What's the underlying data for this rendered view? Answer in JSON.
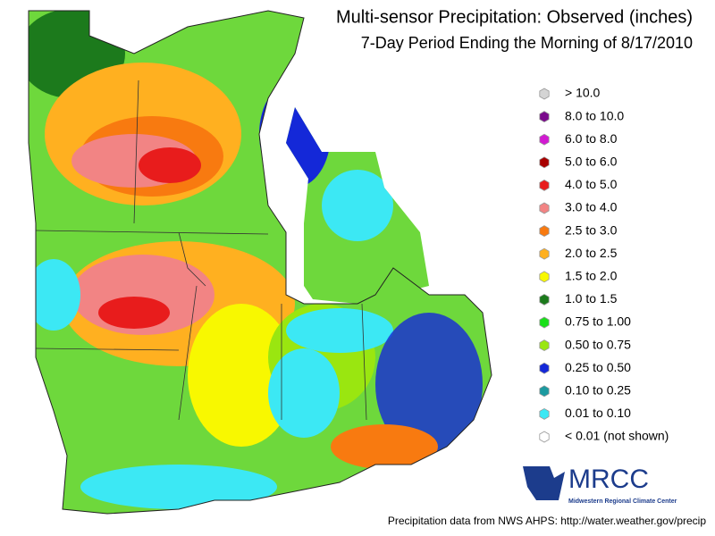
{
  "header": {
    "title": "Multi-sensor Precipitation: Observed (inches)",
    "subtitle": "7-Day Period Ending the Morning of 8/17/2010"
  },
  "legend": [
    {
      "label": "> 10.0",
      "color": "#d4d4d4"
    },
    {
      "label": "8.0 to 10.0",
      "color": "#7a0a8c"
    },
    {
      "label": "6.0 to 8.0",
      "color": "#d21ad2"
    },
    {
      "label": "5.0 to 6.0",
      "color": "#a80000"
    },
    {
      "label": "4.0 to 5.0",
      "color": "#e81c1c"
    },
    {
      "label": "3.0 to 4.0",
      "color": "#f28484"
    },
    {
      "label": "2.5 to 3.0",
      "color": "#f87a10"
    },
    {
      "label": "2.0 to 2.5",
      "color": "#ffb020"
    },
    {
      "label": "1.5 to 2.0",
      "color": "#f8f800"
    },
    {
      "label": "1.0 to 1.5",
      "color": "#1c7a1c"
    },
    {
      "label": "0.75 to 1.00",
      "color": "#18e018"
    },
    {
      "label": "0.50 to 0.75",
      "color": "#9ae610"
    },
    {
      "label": "0.25 to 0.50",
      "color": "#1428d8"
    },
    {
      "label": "0.10 to 0.25",
      "color": "#1c9aa0"
    },
    {
      "label": "0.01 to 0.10",
      "color": "#3ce8f4"
    },
    {
      "label": "< 0.01 (not shown)",
      "color": "#ffffff"
    }
  ],
  "logo": {
    "name": "MRCC",
    "full_name": "Midwestern Regional Climate Center"
  },
  "credit": "Precipitation data from NWS AHPS:  http://water.weather.gov/precip"
}
